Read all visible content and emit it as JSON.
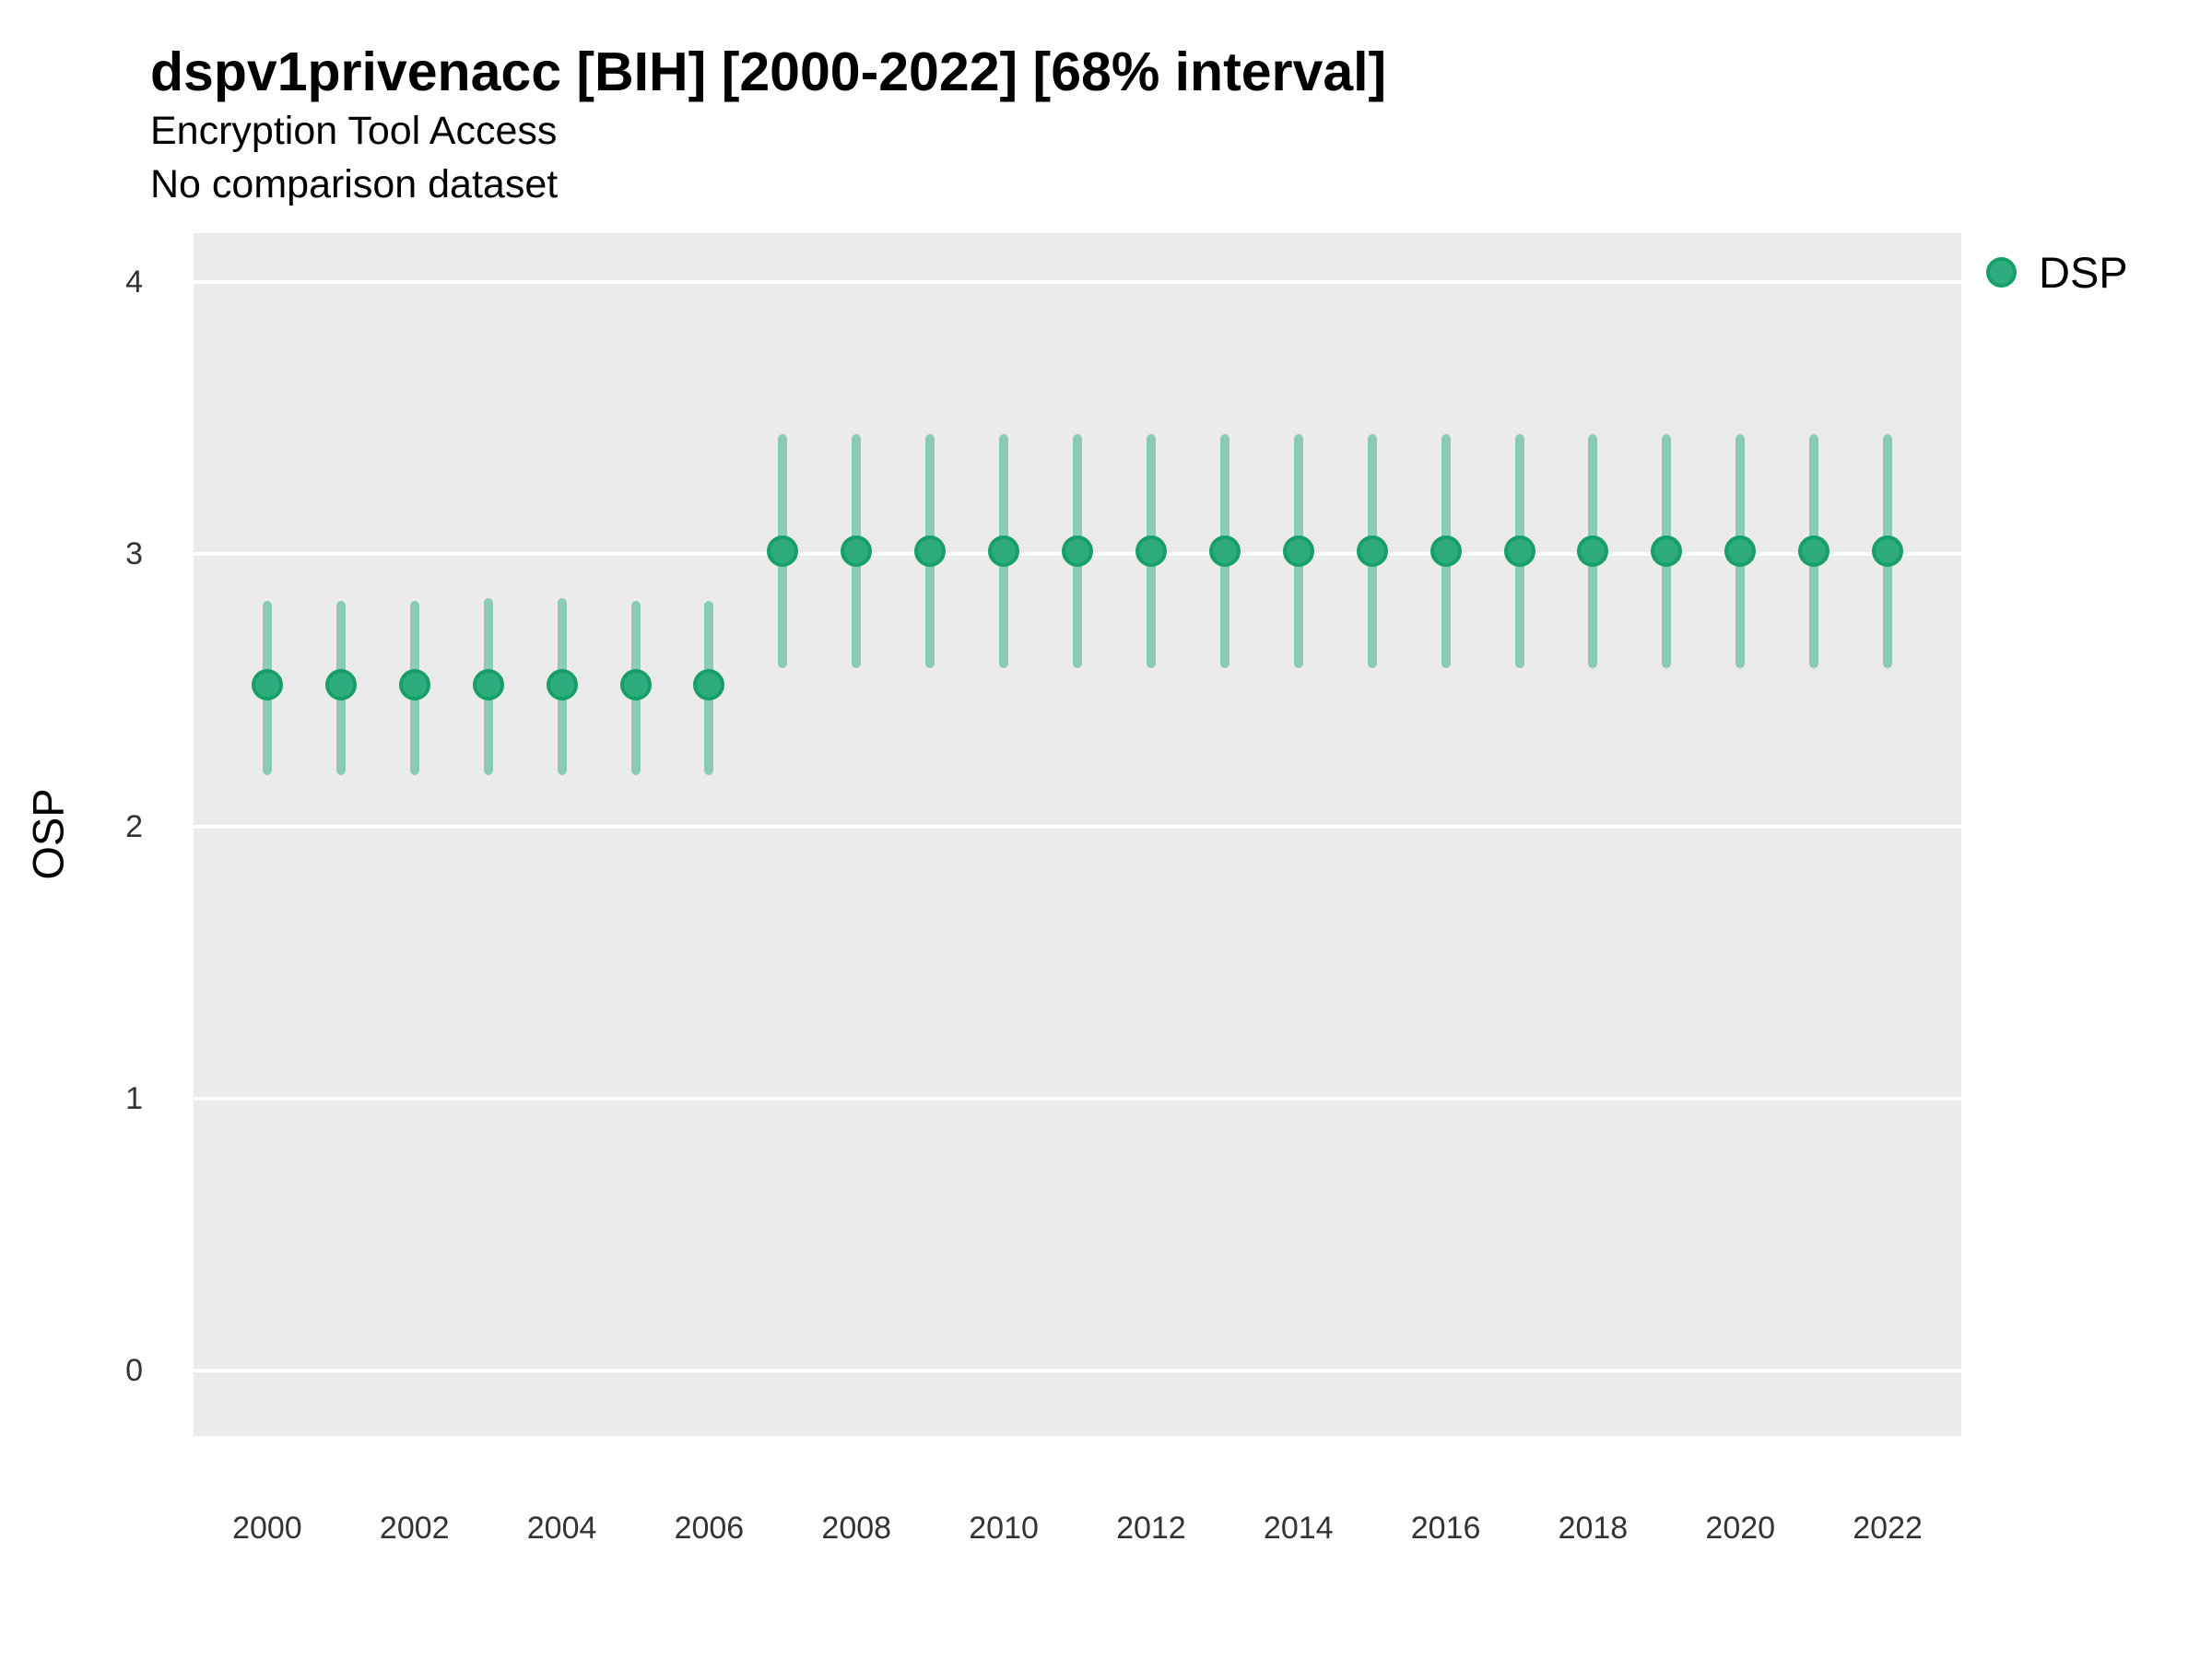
{
  "header": {
    "title": "dspv1privenacc [BIH] [2000-2022] [68% interval]",
    "subtitle1": "Encryption Tool Access",
    "subtitle2": "No comparison dataset"
  },
  "legend": {
    "items": [
      {
        "label": "DSP",
        "marker": "circle-icon"
      }
    ]
  },
  "colors": {
    "panel_bg": "#EBEBEB",
    "grid": "#FFFFFF",
    "point_fill": "#2FAC7F",
    "point_stroke": "#169F67",
    "interval_bar": "#8BCBB4",
    "title_text": "#000000",
    "tick_text": "#333333"
  },
  "y_axis": {
    "label": "OSP",
    "ticks": [
      0,
      1,
      2,
      3,
      4
    ]
  },
  "x_axis": {
    "ticks": [
      2000,
      2002,
      2004,
      2006,
      2008,
      2010,
      2012,
      2014,
      2016,
      2018,
      2020,
      2022
    ]
  },
  "chart_data": {
    "type": "pointrange",
    "title": "dspv1privenacc [BIH] [2000-2022] [68% interval]",
    "subtitle": "Encryption Tool Access",
    "note": "No comparison dataset",
    "interval": "68%",
    "xlabel": "",
    "ylabel": "OSP",
    "xlim": [
      1999,
      2023
    ],
    "ylim": [
      -0.24,
      4.18
    ],
    "grid": "horizontal-major-only",
    "legend_position": "right",
    "series": [
      {
        "name": "DSP",
        "points": [
          {
            "year": 2000,
            "value": 2.52,
            "lo": 2.19,
            "hi": 2.83
          },
          {
            "year": 2001,
            "value": 2.52,
            "lo": 2.19,
            "hi": 2.83
          },
          {
            "year": 2002,
            "value": 2.52,
            "lo": 2.19,
            "hi": 2.83
          },
          {
            "year": 2003,
            "value": 2.52,
            "lo": 2.19,
            "hi": 2.84
          },
          {
            "year": 2004,
            "value": 2.52,
            "lo": 2.19,
            "hi": 2.84
          },
          {
            "year": 2005,
            "value": 2.52,
            "lo": 2.19,
            "hi": 2.83
          },
          {
            "year": 2006,
            "value": 2.52,
            "lo": 2.19,
            "hi": 2.83
          },
          {
            "year": 2007,
            "value": 3.01,
            "lo": 2.58,
            "hi": 3.44
          },
          {
            "year": 2008,
            "value": 3.01,
            "lo": 2.58,
            "hi": 3.44
          },
          {
            "year": 2009,
            "value": 3.01,
            "lo": 2.58,
            "hi": 3.44
          },
          {
            "year": 2010,
            "value": 3.01,
            "lo": 2.58,
            "hi": 3.44
          },
          {
            "year": 2011,
            "value": 3.01,
            "lo": 2.58,
            "hi": 3.44
          },
          {
            "year": 2012,
            "value": 3.01,
            "lo": 2.58,
            "hi": 3.44
          },
          {
            "year": 2013,
            "value": 3.01,
            "lo": 2.58,
            "hi": 3.44
          },
          {
            "year": 2014,
            "value": 3.01,
            "lo": 2.58,
            "hi": 3.44
          },
          {
            "year": 2015,
            "value": 3.01,
            "lo": 2.58,
            "hi": 3.44
          },
          {
            "year": 2016,
            "value": 3.01,
            "lo": 2.58,
            "hi": 3.44
          },
          {
            "year": 2017,
            "value": 3.01,
            "lo": 2.58,
            "hi": 3.44
          },
          {
            "year": 2018,
            "value": 3.01,
            "lo": 2.58,
            "hi": 3.44
          },
          {
            "year": 2019,
            "value": 3.01,
            "lo": 2.58,
            "hi": 3.44
          },
          {
            "year": 2020,
            "value": 3.01,
            "lo": 2.58,
            "hi": 3.44
          },
          {
            "year": 2021,
            "value": 3.01,
            "lo": 2.58,
            "hi": 3.44
          },
          {
            "year": 2022,
            "value": 3.01,
            "lo": 2.58,
            "hi": 3.44
          }
        ]
      }
    ]
  }
}
